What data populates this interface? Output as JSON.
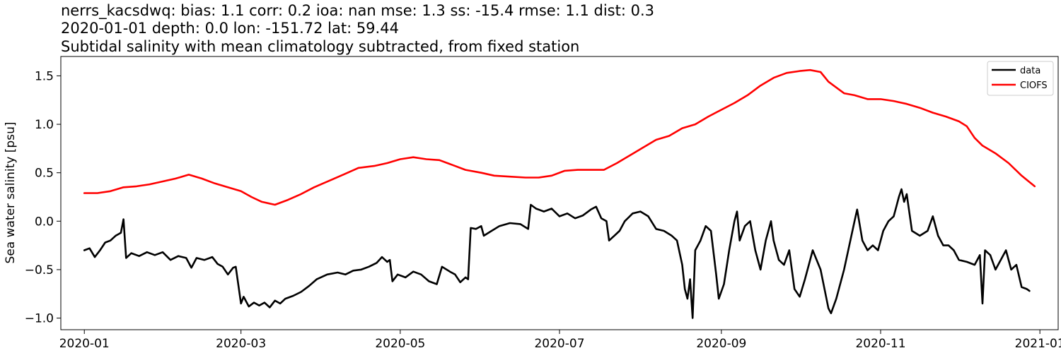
{
  "header": {
    "line1": "nerrs_kacsdwq: bias: 1.1  corr: 0.2  ioa: nan  mse: 1.3  ss: -15.4  rmse: 1.1  dist: 0.3",
    "line2": "2020-01-01 depth: 0.0 lon: -151.72 lat: 59.44",
    "line3": "Subtidal salinity with mean climatology subtracted, from fixed station"
  },
  "chart_data": {
    "type": "line",
    "ylabel": "Sea water salinity [psu]",
    "xlabel": "",
    "x_axis": "date",
    "xlim": [
      "2019-12-23",
      "2021-01-08"
    ],
    "ylim": [
      -1.12,
      1.7
    ],
    "xticks": [
      "2020-01",
      "2020-03",
      "2020-05",
      "2020-07",
      "2020-09",
      "2020-11",
      "2021-01"
    ],
    "xtick_dates": [
      "2020-01-01",
      "2020-03-01",
      "2020-05-01",
      "2020-07-01",
      "2020-09-01",
      "2020-11-01",
      "2021-01-01"
    ],
    "yticks": [
      "−1.0",
      "−0.5",
      "0.0",
      "0.5",
      "1.0",
      "1.5"
    ],
    "ytick_values": [
      -1.0,
      -0.5,
      0.0,
      0.5,
      1.0,
      1.5
    ],
    "grid": false,
    "legend_position": "top-right",
    "series": [
      {
        "name": "data",
        "color": "#000000",
        "points": [
          [
            "2020-01-01",
            -0.3
          ],
          [
            "2020-01-03",
            -0.28
          ],
          [
            "2020-01-05",
            -0.37
          ],
          [
            "2020-01-07",
            -0.3
          ],
          [
            "2020-01-09",
            -0.22
          ],
          [
            "2020-01-11",
            -0.2
          ],
          [
            "2020-01-13",
            -0.15
          ],
          [
            "2020-01-15",
            -0.12
          ],
          [
            "2020-01-16",
            0.02
          ],
          [
            "2020-01-17",
            -0.38
          ],
          [
            "2020-01-19",
            -0.33
          ],
          [
            "2020-01-22",
            -0.36
          ],
          [
            "2020-01-25",
            -0.32
          ],
          [
            "2020-01-28",
            -0.35
          ],
          [
            "2020-01-31",
            -0.32
          ],
          [
            "2020-02-03",
            -0.4
          ],
          [
            "2020-02-06",
            -0.36
          ],
          [
            "2020-02-09",
            -0.38
          ],
          [
            "2020-02-11",
            -0.48
          ],
          [
            "2020-02-13",
            -0.38
          ],
          [
            "2020-02-16",
            -0.4
          ],
          [
            "2020-02-19",
            -0.37
          ],
          [
            "2020-02-21",
            -0.44
          ],
          [
            "2020-02-23",
            -0.47
          ],
          [
            "2020-02-25",
            -0.55
          ],
          [
            "2020-02-27",
            -0.48
          ],
          [
            "2020-02-28",
            -0.47
          ],
          [
            "2020-03-01",
            -0.85
          ],
          [
            "2020-03-02",
            -0.78
          ],
          [
            "2020-03-04",
            -0.88
          ],
          [
            "2020-03-06",
            -0.84
          ],
          [
            "2020-03-08",
            -0.87
          ],
          [
            "2020-03-10",
            -0.84
          ],
          [
            "2020-03-12",
            -0.89
          ],
          [
            "2020-03-14",
            -0.82
          ],
          [
            "2020-03-16",
            -0.85
          ],
          [
            "2020-03-18",
            -0.8
          ],
          [
            "2020-03-21",
            -0.77
          ],
          [
            "2020-03-24",
            -0.73
          ],
          [
            "2020-03-27",
            -0.67
          ],
          [
            "2020-03-30",
            -0.6
          ],
          [
            "2020-04-03",
            -0.55
          ],
          [
            "2020-04-07",
            -0.53
          ],
          [
            "2020-04-10",
            -0.55
          ],
          [
            "2020-04-13",
            -0.51
          ],
          [
            "2020-04-16",
            -0.5
          ],
          [
            "2020-04-19",
            -0.47
          ],
          [
            "2020-04-22",
            -0.43
          ],
          [
            "2020-04-24",
            -0.37
          ],
          [
            "2020-04-26",
            -0.42
          ],
          [
            "2020-04-27",
            -0.4
          ],
          [
            "2020-04-28",
            -0.62
          ],
          [
            "2020-04-30",
            -0.55
          ],
          [
            "2020-05-03",
            -0.58
          ],
          [
            "2020-05-06",
            -0.52
          ],
          [
            "2020-05-09",
            -0.55
          ],
          [
            "2020-05-12",
            -0.62
          ],
          [
            "2020-05-15",
            -0.65
          ],
          [
            "2020-05-17",
            -0.47
          ],
          [
            "2020-05-20",
            -0.52
          ],
          [
            "2020-05-22",
            -0.55
          ],
          [
            "2020-05-24",
            -0.63
          ],
          [
            "2020-05-26",
            -0.58
          ],
          [
            "2020-05-27",
            -0.6
          ],
          [
            "2020-05-28",
            -0.07
          ],
          [
            "2020-05-30",
            -0.08
          ],
          [
            "2020-06-01",
            -0.05
          ],
          [
            "2020-06-02",
            -0.15
          ],
          [
            "2020-06-05",
            -0.1
          ],
          [
            "2020-06-08",
            -0.05
          ],
          [
            "2020-06-12",
            -0.02
          ],
          [
            "2020-06-16",
            -0.03
          ],
          [
            "2020-06-19",
            -0.08
          ],
          [
            "2020-06-20",
            0.17
          ],
          [
            "2020-06-22",
            0.13
          ],
          [
            "2020-06-25",
            0.1
          ],
          [
            "2020-06-28",
            0.13
          ],
          [
            "2020-07-01",
            0.05
          ],
          [
            "2020-07-04",
            0.08
          ],
          [
            "2020-07-07",
            0.03
          ],
          [
            "2020-07-10",
            0.06
          ],
          [
            "2020-07-13",
            0.12
          ],
          [
            "2020-07-15",
            0.15
          ],
          [
            "2020-07-17",
            0.03
          ],
          [
            "2020-07-19",
            0.0
          ],
          [
            "2020-07-20",
            -0.2
          ],
          [
            "2020-07-22",
            -0.15
          ],
          [
            "2020-07-24",
            -0.1
          ],
          [
            "2020-07-26",
            0.0
          ],
          [
            "2020-07-29",
            0.08
          ],
          [
            "2020-08-01",
            0.1
          ],
          [
            "2020-08-04",
            0.05
          ],
          [
            "2020-08-07",
            -0.08
          ],
          [
            "2020-08-10",
            -0.1
          ],
          [
            "2020-08-13",
            -0.15
          ],
          [
            "2020-08-15",
            -0.2
          ],
          [
            "2020-08-17",
            -0.45
          ],
          [
            "2020-08-18",
            -0.7
          ],
          [
            "2020-08-19",
            -0.8
          ],
          [
            "2020-08-20",
            -0.6
          ],
          [
            "2020-08-21",
            -1.0
          ],
          [
            "2020-08-22",
            -0.3
          ],
          [
            "2020-08-24",
            -0.2
          ],
          [
            "2020-08-26",
            -0.05
          ],
          [
            "2020-08-28",
            -0.1
          ],
          [
            "2020-08-30",
            -0.55
          ],
          [
            "2020-08-31",
            -0.8
          ],
          [
            "2020-09-02",
            -0.65
          ],
          [
            "2020-09-04",
            -0.3
          ],
          [
            "2020-09-06",
            0.0
          ],
          [
            "2020-09-07",
            0.1
          ],
          [
            "2020-09-08",
            -0.2
          ],
          [
            "2020-09-10",
            -0.05
          ],
          [
            "2020-09-12",
            0.0
          ],
          [
            "2020-09-14",
            -0.3
          ],
          [
            "2020-09-16",
            -0.5
          ],
          [
            "2020-09-18",
            -0.2
          ],
          [
            "2020-09-20",
            0.0
          ],
          [
            "2020-09-21",
            -0.2
          ],
          [
            "2020-09-23",
            -0.4
          ],
          [
            "2020-09-25",
            -0.45
          ],
          [
            "2020-09-27",
            -0.3
          ],
          [
            "2020-09-29",
            -0.7
          ],
          [
            "2020-10-01",
            -0.78
          ],
          [
            "2020-10-03",
            -0.6
          ],
          [
            "2020-10-06",
            -0.3
          ],
          [
            "2020-10-09",
            -0.5
          ],
          [
            "2020-10-12",
            -0.9
          ],
          [
            "2020-10-13",
            -0.95
          ],
          [
            "2020-10-15",
            -0.8
          ],
          [
            "2020-10-18",
            -0.5
          ],
          [
            "2020-10-20",
            -0.25
          ],
          [
            "2020-10-22",
            0.0
          ],
          [
            "2020-10-23",
            0.12
          ],
          [
            "2020-10-25",
            -0.2
          ],
          [
            "2020-10-27",
            -0.3
          ],
          [
            "2020-10-29",
            -0.25
          ],
          [
            "2020-10-31",
            -0.3
          ],
          [
            "2020-11-02",
            -0.1
          ],
          [
            "2020-11-04",
            0.0
          ],
          [
            "2020-11-06",
            0.05
          ],
          [
            "2020-11-07",
            0.15
          ],
          [
            "2020-11-08",
            0.25
          ],
          [
            "2020-11-09",
            0.33
          ],
          [
            "2020-11-10",
            0.2
          ],
          [
            "2020-11-11",
            0.28
          ],
          [
            "2020-11-13",
            -0.1
          ],
          [
            "2020-11-16",
            -0.15
          ],
          [
            "2020-11-19",
            -0.1
          ],
          [
            "2020-11-21",
            0.05
          ],
          [
            "2020-11-23",
            -0.15
          ],
          [
            "2020-11-25",
            -0.25
          ],
          [
            "2020-11-27",
            -0.25
          ],
          [
            "2020-11-29",
            -0.3
          ],
          [
            "2020-12-01",
            -0.4
          ],
          [
            "2020-12-04",
            -0.42
          ],
          [
            "2020-12-07",
            -0.45
          ],
          [
            "2020-12-09",
            -0.35
          ],
          [
            "2020-12-10",
            -0.85
          ],
          [
            "2020-12-11",
            -0.3
          ],
          [
            "2020-12-13",
            -0.35
          ],
          [
            "2020-12-15",
            -0.5
          ],
          [
            "2020-12-17",
            -0.4
          ],
          [
            "2020-12-19",
            -0.3
          ],
          [
            "2020-12-21",
            -0.5
          ],
          [
            "2020-12-23",
            -0.45
          ],
          [
            "2020-12-25",
            -0.68
          ],
          [
            "2020-12-27",
            -0.7
          ],
          [
            "2020-12-28",
            -0.72
          ]
        ]
      },
      {
        "name": "CIOFS",
        "color": "#ff0000",
        "points": [
          [
            "2020-01-01",
            0.29
          ],
          [
            "2020-01-06",
            0.29
          ],
          [
            "2020-01-11",
            0.31
          ],
          [
            "2020-01-16",
            0.35
          ],
          [
            "2020-01-21",
            0.36
          ],
          [
            "2020-01-26",
            0.38
          ],
          [
            "2020-01-31",
            0.41
          ],
          [
            "2020-02-05",
            0.44
          ],
          [
            "2020-02-10",
            0.48
          ],
          [
            "2020-02-15",
            0.44
          ],
          [
            "2020-02-20",
            0.39
          ],
          [
            "2020-02-25",
            0.35
          ],
          [
            "2020-03-01",
            0.31
          ],
          [
            "2020-03-05",
            0.25
          ],
          [
            "2020-03-09",
            0.2
          ],
          [
            "2020-03-14",
            0.17
          ],
          [
            "2020-03-19",
            0.22
          ],
          [
            "2020-03-24",
            0.28
          ],
          [
            "2020-03-29",
            0.35
          ],
          [
            "2020-04-04",
            0.42
          ],
          [
            "2020-04-10",
            0.49
          ],
          [
            "2020-04-15",
            0.55
          ],
          [
            "2020-04-21",
            0.57
          ],
          [
            "2020-04-26",
            0.6
          ],
          [
            "2020-05-01",
            0.64
          ],
          [
            "2020-05-06",
            0.66
          ],
          [
            "2020-05-11",
            0.64
          ],
          [
            "2020-05-16",
            0.63
          ],
          [
            "2020-05-21",
            0.58
          ],
          [
            "2020-05-26",
            0.53
          ],
          [
            "2020-06-01",
            0.5
          ],
          [
            "2020-06-06",
            0.47
          ],
          [
            "2020-06-12",
            0.46
          ],
          [
            "2020-06-18",
            0.45
          ],
          [
            "2020-06-23",
            0.45
          ],
          [
            "2020-06-28",
            0.47
          ],
          [
            "2020-07-03",
            0.52
          ],
          [
            "2020-07-08",
            0.53
          ],
          [
            "2020-07-13",
            0.53
          ],
          [
            "2020-07-18",
            0.53
          ],
          [
            "2020-07-23",
            0.6
          ],
          [
            "2020-07-28",
            0.68
          ],
          [
            "2020-08-02",
            0.76
          ],
          [
            "2020-08-07",
            0.84
          ],
          [
            "2020-08-12",
            0.88
          ],
          [
            "2020-08-17",
            0.96
          ],
          [
            "2020-08-22",
            1.0
          ],
          [
            "2020-08-27",
            1.08
          ],
          [
            "2020-09-01",
            1.15
          ],
          [
            "2020-09-06",
            1.22
          ],
          [
            "2020-09-11",
            1.3
          ],
          [
            "2020-09-16",
            1.4
          ],
          [
            "2020-09-21",
            1.48
          ],
          [
            "2020-09-26",
            1.53
          ],
          [
            "2020-10-01",
            1.55
          ],
          [
            "2020-10-05",
            1.56
          ],
          [
            "2020-10-09",
            1.54
          ],
          [
            "2020-10-12",
            1.44
          ],
          [
            "2020-10-15",
            1.38
          ],
          [
            "2020-10-18",
            1.32
          ],
          [
            "2020-10-22",
            1.3
          ],
          [
            "2020-10-27",
            1.26
          ],
          [
            "2020-11-01",
            1.26
          ],
          [
            "2020-11-06",
            1.24
          ],
          [
            "2020-11-11",
            1.21
          ],
          [
            "2020-11-16",
            1.17
          ],
          [
            "2020-11-21",
            1.12
          ],
          [
            "2020-11-26",
            1.08
          ],
          [
            "2020-12-01",
            1.03
          ],
          [
            "2020-12-04",
            0.98
          ],
          [
            "2020-12-07",
            0.86
          ],
          [
            "2020-12-10",
            0.78
          ],
          [
            "2020-12-15",
            0.7
          ],
          [
            "2020-12-20",
            0.6
          ],
          [
            "2020-12-25",
            0.47
          ],
          [
            "2020-12-30",
            0.36
          ]
        ]
      }
    ]
  }
}
